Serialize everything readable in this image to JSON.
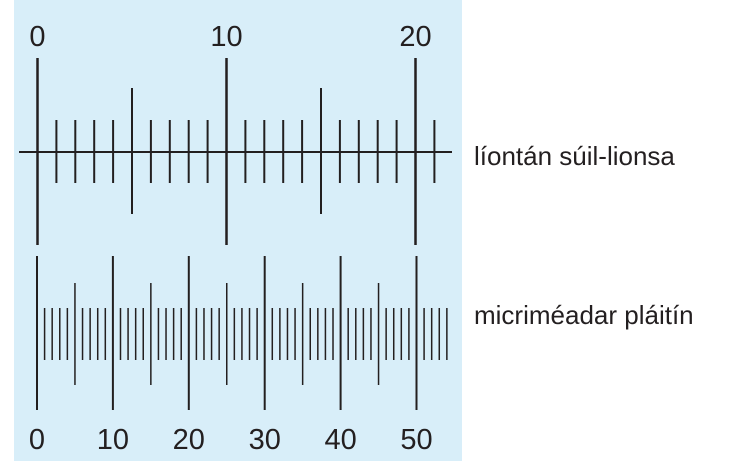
{
  "colors": {
    "panel_background": "#d8eef9",
    "ink": "#231f20"
  },
  "eyepiece_graticule": {
    "label": "líontán súil-lionsa",
    "divisions": 21,
    "scale_labels": [
      "0",
      "10",
      "20"
    ]
  },
  "stage_micrometer": {
    "label": "micriméadar pláitín",
    "divisions": 54,
    "scale_labels": [
      "0",
      "10",
      "20",
      "30",
      "40",
      "50"
    ]
  }
}
